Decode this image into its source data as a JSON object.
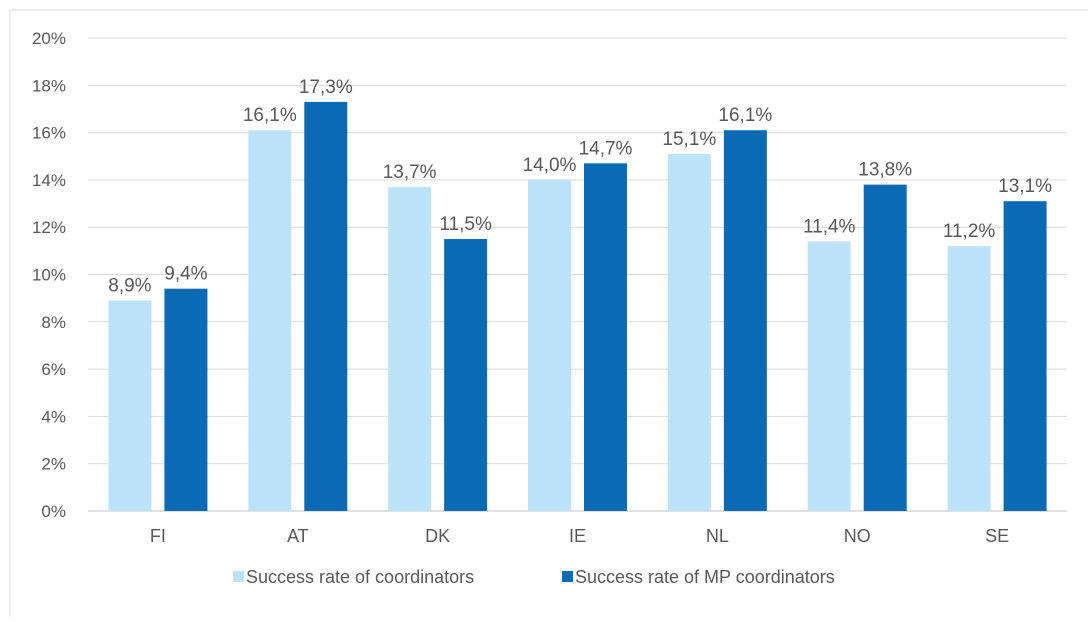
{
  "chart_data": {
    "type": "bar",
    "title": "",
    "xlabel": "",
    "ylabel": "",
    "categories": [
      "FI",
      "AT",
      "DK",
      "IE",
      "NL",
      "NO",
      "SE"
    ],
    "series": [
      {
        "name": "Success rate of coordinators",
        "values": [
          8.9,
          16.1,
          13.7,
          14.0,
          15.1,
          11.4,
          11.2
        ],
        "labels": [
          "8,9%",
          "16,1%",
          "13,7%",
          "14,0%",
          "15,1%",
          "11,4%",
          "11,2%"
        ],
        "color": "#BDE3FA"
      },
      {
        "name": "Success rate of MP coordinators",
        "values": [
          9.4,
          17.3,
          11.5,
          14.7,
          16.1,
          13.8,
          13.1
        ],
        "labels": [
          "9,4%",
          "17,3%",
          "11,5%",
          "14,7%",
          "16,1%",
          "13,8%",
          "13,1%"
        ],
        "color": "#0B6AB4"
      }
    ],
    "ylim": [
      0,
      20
    ],
    "yticks": [
      "0%",
      "2%",
      "4%",
      "6%",
      "8%",
      "10%",
      "12%",
      "14%",
      "16%",
      "18%",
      "20%"
    ],
    "grid": true,
    "legend_position": "bottom"
  }
}
